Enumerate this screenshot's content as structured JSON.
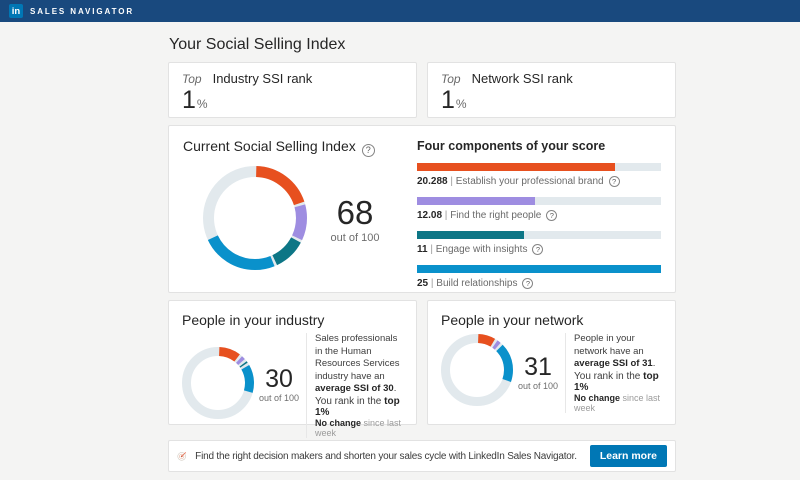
{
  "nav": {
    "logo_text": "in",
    "brand": "SALES NAVIGATOR"
  },
  "page_title": "Your Social Selling Index",
  "colors": {
    "navbar": "#19497e",
    "linkedin_blue": "#0077b5",
    "orange": "#e7501f",
    "purple": "#9e8de1",
    "teal": "#0d7686",
    "blue": "#0a91cb",
    "track": "#e2e9ed",
    "button": "#0077b5"
  },
  "rank_cards": [
    {
      "prefix": "Top",
      "title": "Industry SSI rank",
      "value": "1",
      "unit": "%"
    },
    {
      "prefix": "Top",
      "title": "Network SSI rank",
      "value": "1",
      "unit": "%"
    }
  ],
  "current": {
    "title": "Current Social Selling Index",
    "score": "68",
    "out_of": "out of 100",
    "components_title": "Four components of your score"
  },
  "industry": {
    "title": "People in your industry",
    "score": "30",
    "out_of": "out of 100",
    "desc_parts": [
      {
        "t": "Sales professionals in the Human Resources Services industry have an ",
        "b": false
      },
      {
        "t": "average SSI of 30",
        "b": true
      },
      {
        "t": ".",
        "b": false
      }
    ],
    "rank_parts": [
      {
        "t": "You rank in the ",
        "b": false
      },
      {
        "t": "top 1%",
        "b": true
      }
    ],
    "change_parts": [
      {
        "t": "No change",
        "b": true
      },
      {
        "t": " since last week",
        "b": false
      }
    ]
  },
  "network": {
    "title": "People in your network",
    "score": "31",
    "out_of": "out of 100",
    "desc_parts": [
      {
        "t": "People in your network have an ",
        "b": false
      },
      {
        "t": "average SSI of 31",
        "b": true
      },
      {
        "t": ".",
        "b": false
      }
    ],
    "rank_parts": [
      {
        "t": "You rank in the ",
        "b": false
      },
      {
        "t": "top 1%",
        "b": true
      }
    ],
    "change_parts": [
      {
        "t": "No change",
        "b": true
      },
      {
        "t": " since last week",
        "b": false
      }
    ]
  },
  "banner": {
    "text": "Find the right decision makers and shorten your sales cycle with LinkedIn Sales Navigator.",
    "button": "Learn more"
  },
  "chart_data": [
    {
      "type": "donut",
      "title": "Current Social Selling Index",
      "score": 68,
      "max": 100,
      "track": "#e2e9ed",
      "segments": [
        {
          "label": "Establish your professional brand",
          "value": 20.288,
          "color": "#e7501f"
        },
        {
          "label": "Find the right people",
          "value": 12.08,
          "color": "#9e8de1"
        },
        {
          "label": "Engage with insights",
          "value": 11,
          "color": "#0d7686"
        },
        {
          "label": "Build relationships",
          "value": 25,
          "color": "#0a91cb"
        }
      ]
    },
    {
      "type": "bar",
      "title": "Four components of your score",
      "max": 25,
      "bars": [
        {
          "display": "20.288",
          "label": "Establish your professional brand",
          "value": 20.288,
          "color": "#e7501f"
        },
        {
          "display": "12.08",
          "label": "Find the right people",
          "value": 12.08,
          "color": "#9e8de1"
        },
        {
          "display": "11",
          "label": "Engage with insights",
          "value": 11,
          "color": "#0d7686"
        },
        {
          "display": "25",
          "label": "Build relationships",
          "value": 25,
          "color": "#0a91cb"
        }
      ]
    },
    {
      "type": "donut",
      "title": "People in your industry",
      "score": 30,
      "max": 100,
      "track": "#e2e9ed",
      "segments": [
        {
          "label": "Establish your professional brand",
          "value": 11,
          "color": "#e7501f"
        },
        {
          "label": "Find the right people",
          "value": 3,
          "color": "#9e8de1"
        },
        {
          "label": "Engage with insights",
          "value": 2,
          "color": "#0d7686"
        },
        {
          "label": "Build relationships",
          "value": 14,
          "color": "#0a91cb"
        }
      ]
    },
    {
      "type": "donut",
      "title": "People in your network",
      "score": 31,
      "max": 100,
      "track": "#e2e9ed",
      "segments": [
        {
          "label": "Establish your professional brand",
          "value": 9,
          "color": "#e7501f"
        },
        {
          "label": "Find the right people",
          "value": 3,
          "color": "#9e8de1"
        },
        {
          "label": "Build relationships",
          "value": 19,
          "color": "#0a91cb"
        }
      ]
    }
  ]
}
